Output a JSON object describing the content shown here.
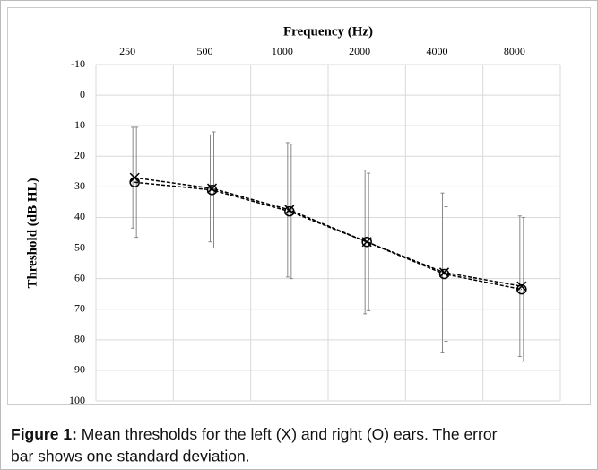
{
  "chart_data": {
    "type": "line",
    "title": "Frequency (Hz)",
    "ylabel": "Threshold (dB HL)",
    "categories": [
      "250",
      "500",
      "1000",
      "2000",
      "4000",
      "8000"
    ],
    "ylim": [
      -10,
      100
    ],
    "yticks": [
      -10,
      0,
      10,
      20,
      30,
      40,
      50,
      60,
      70,
      80,
      90,
      100
    ],
    "y_inverted": true,
    "grid": true,
    "series": [
      {
        "marker": "x",
        "color": "#000000",
        "values": [
          27,
          30.5,
          37.5,
          48,
          58,
          62.5
        ],
        "errors": [
          16.5,
          17.5,
          22,
          23.5,
          26,
          23
        ]
      },
      {
        "marker": "o",
        "color": "#000000",
        "values": [
          28.5,
          31,
          38,
          48,
          58.5,
          63.5
        ],
        "errors": [
          18,
          19,
          22,
          22.5,
          22,
          23.5
        ]
      }
    ]
  },
  "caption": {
    "label": "Figure 1:",
    "text": " Mean thresholds for the left (X) and right (O) ears. The error",
    "text2": "bar shows one standard deviation."
  }
}
